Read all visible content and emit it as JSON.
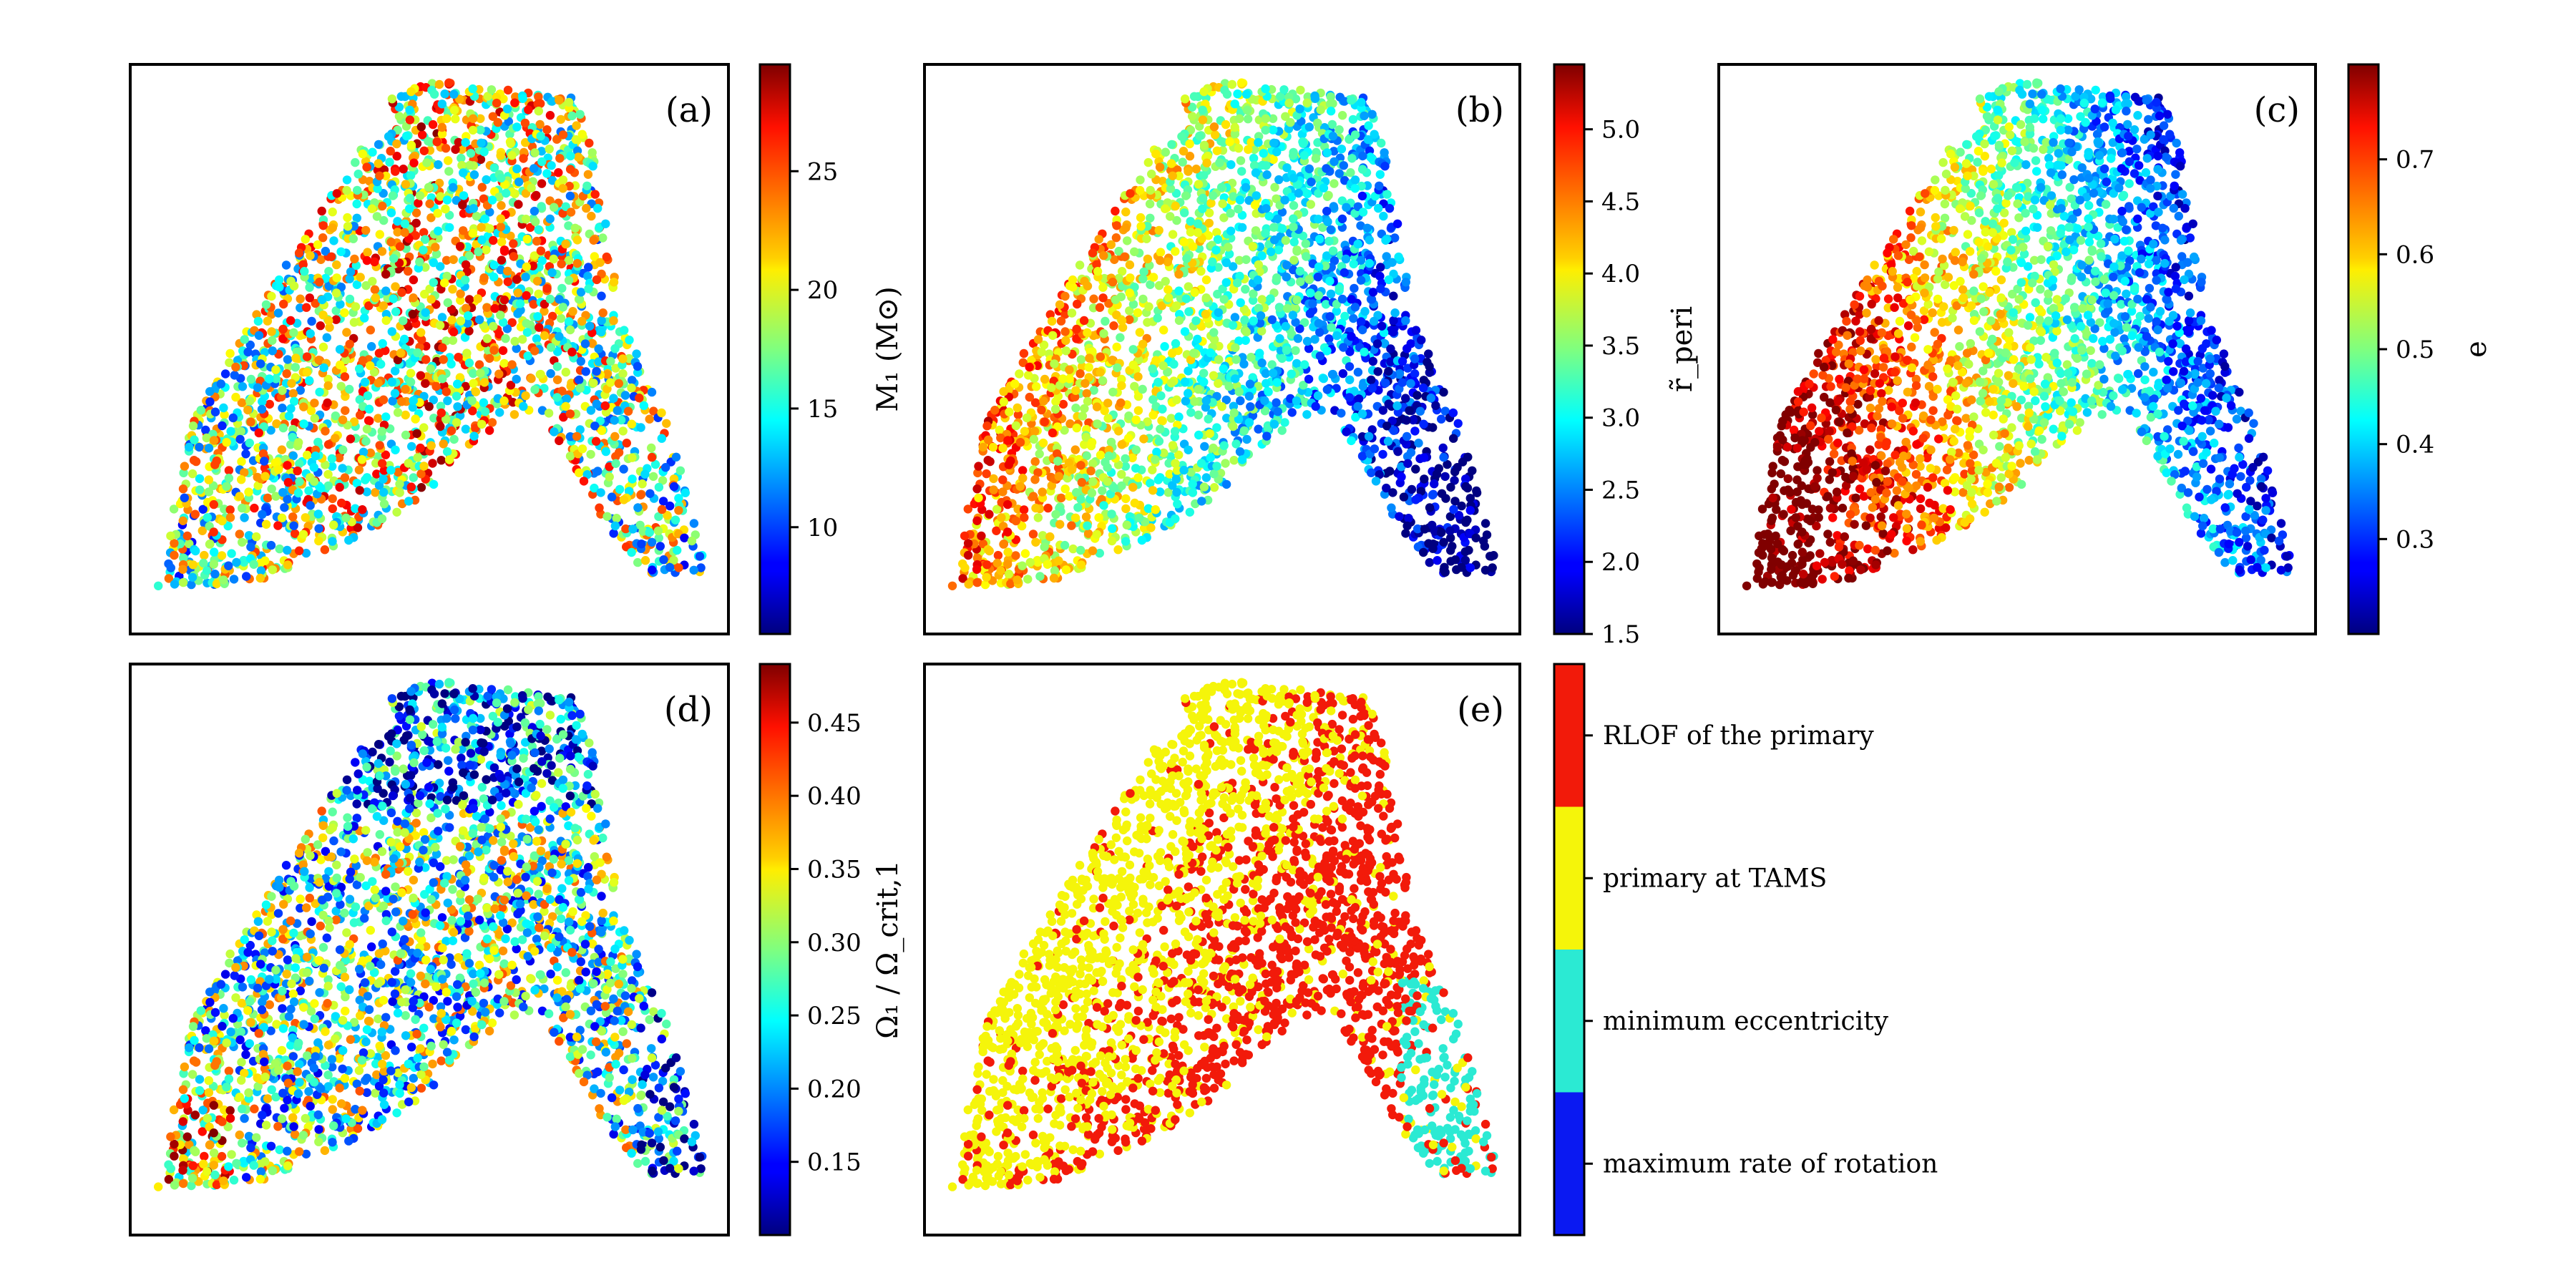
{
  "chart_data": [
    {
      "type": "scatter",
      "panel_label": "(a)",
      "colorbar": {
        "label": "M₁ (M⊙)",
        "cmap": "jet",
        "range": [
          5.5,
          29.5
        ],
        "ticks": [
          "10",
          "15",
          "20",
          "25"
        ],
        "tick_values": [
          10,
          15,
          20,
          25
        ]
      },
      "color_pattern": "random"
    },
    {
      "type": "scatter",
      "panel_label": "(b)",
      "colorbar": {
        "label": "r̃_peri",
        "cmap": "jet",
        "range": [
          1.5,
          5.45
        ],
        "ticks": [
          "1.5",
          "2.0",
          "2.5",
          "3.0",
          "3.5",
          "4.0",
          "4.5",
          "5.0"
        ],
        "tick_values": [
          1.5,
          2.0,
          2.5,
          3.0,
          3.5,
          4.0,
          4.5,
          5.0
        ]
      },
      "color_pattern": "high-upper-left"
    },
    {
      "type": "scatter",
      "panel_label": "(c)",
      "colorbar": {
        "label": "e",
        "cmap": "jet",
        "range": [
          0.2,
          0.8
        ],
        "ticks": [
          "0.3",
          "0.4",
          "0.5",
          "0.6",
          "0.7"
        ],
        "tick_values": [
          0.3,
          0.4,
          0.5,
          0.6,
          0.7
        ]
      },
      "color_pattern": "high-left"
    },
    {
      "type": "scatter",
      "panel_label": "(d)",
      "colorbar": {
        "label": "Ω₁ / Ω_crit,1",
        "cmap": "jet",
        "range": [
          0.1,
          0.49
        ],
        "ticks": [
          "0.15",
          "0.20",
          "0.25",
          "0.30",
          "0.35",
          "0.40",
          "0.45"
        ],
        "tick_values": [
          0.15,
          0.2,
          0.25,
          0.3,
          0.35,
          0.4,
          0.45
        ]
      },
      "color_pattern": "random-edge-low"
    },
    {
      "type": "scatter",
      "panel_label": "(e)",
      "colorbar": {
        "label": "",
        "categories": [
          {
            "name": "maximum rate of rotation",
            "color": "#0a19f2"
          },
          {
            "name": "minimum eccentricity",
            "color": "#2bead3"
          },
          {
            "name": "primary at TAMS",
            "color": "#f5f50a"
          },
          {
            "name": "RLOF of the primary",
            "color": "#f21a0a"
          }
        ]
      },
      "color_pattern": "categorical"
    }
  ]
}
